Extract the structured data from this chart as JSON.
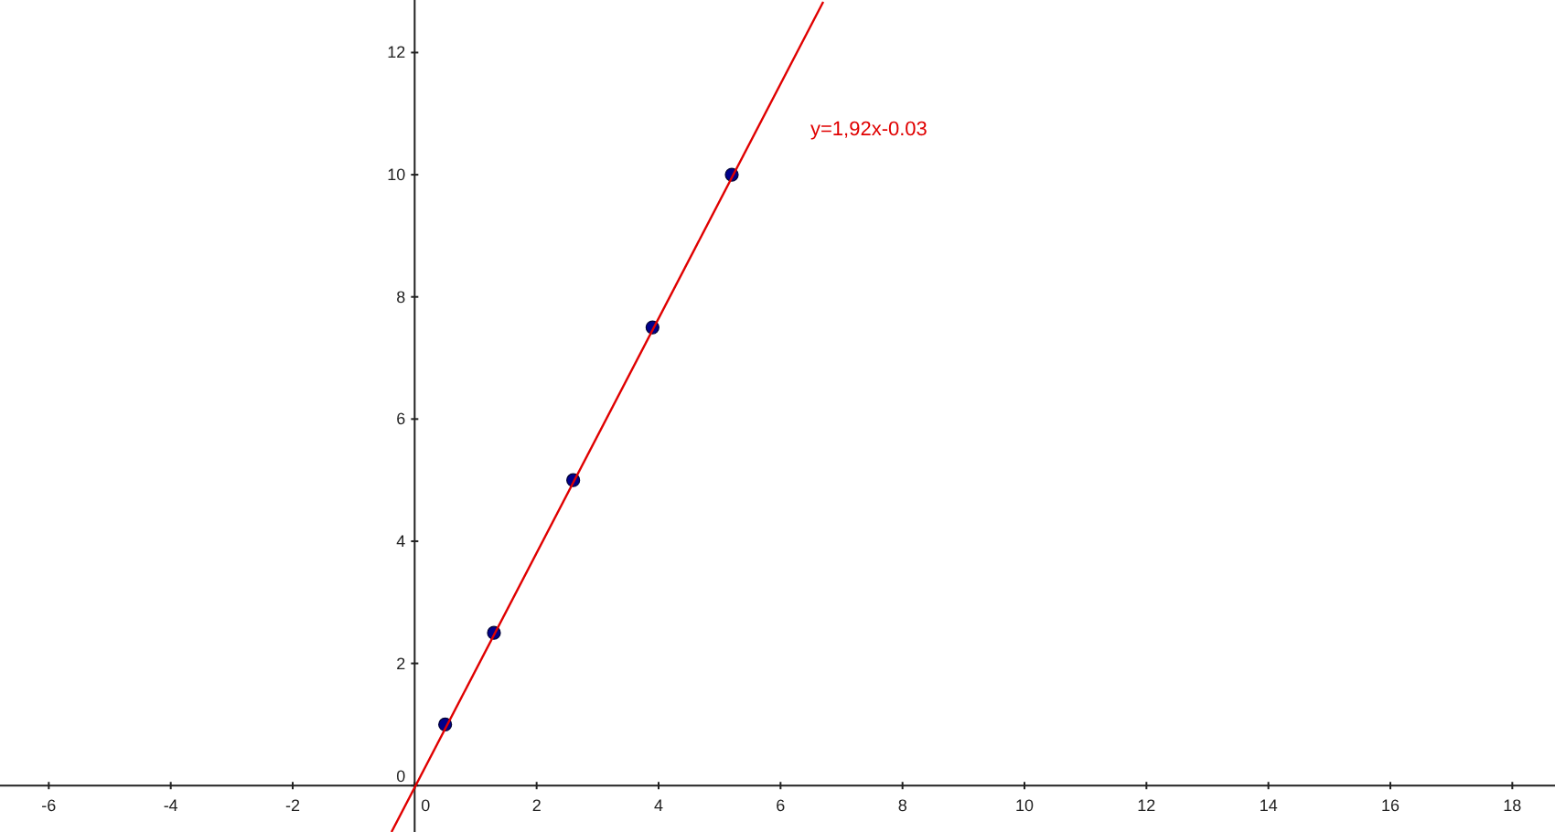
{
  "chart_data": {
    "type": "scatter",
    "xlim": [
      -6.8,
      18.7
    ],
    "ylim": [
      -0.76,
      12.86
    ],
    "xticks": [
      -6,
      -4,
      -2,
      0,
      2,
      4,
      6,
      8,
      10,
      12,
      14,
      16,
      18
    ],
    "yticks": [
      0,
      2,
      4,
      6,
      8,
      10,
      12
    ],
    "grid": false,
    "marker": "circle",
    "series": [
      {
        "color": "#00008b",
        "x": [
          0.5,
          1.3,
          2.6,
          3.9,
          5.2
        ],
        "values": [
          1,
          2.5,
          5,
          7.5,
          10
        ]
      },
      {
        "type": "line",
        "color": "#e00000",
        "x": [
          -0.38,
          6.7
        ],
        "values": [
          -0.76,
          12.83
        ],
        "marker": "none"
      }
    ],
    "annotations": [
      "y=1,92x-0.03"
    ]
  }
}
